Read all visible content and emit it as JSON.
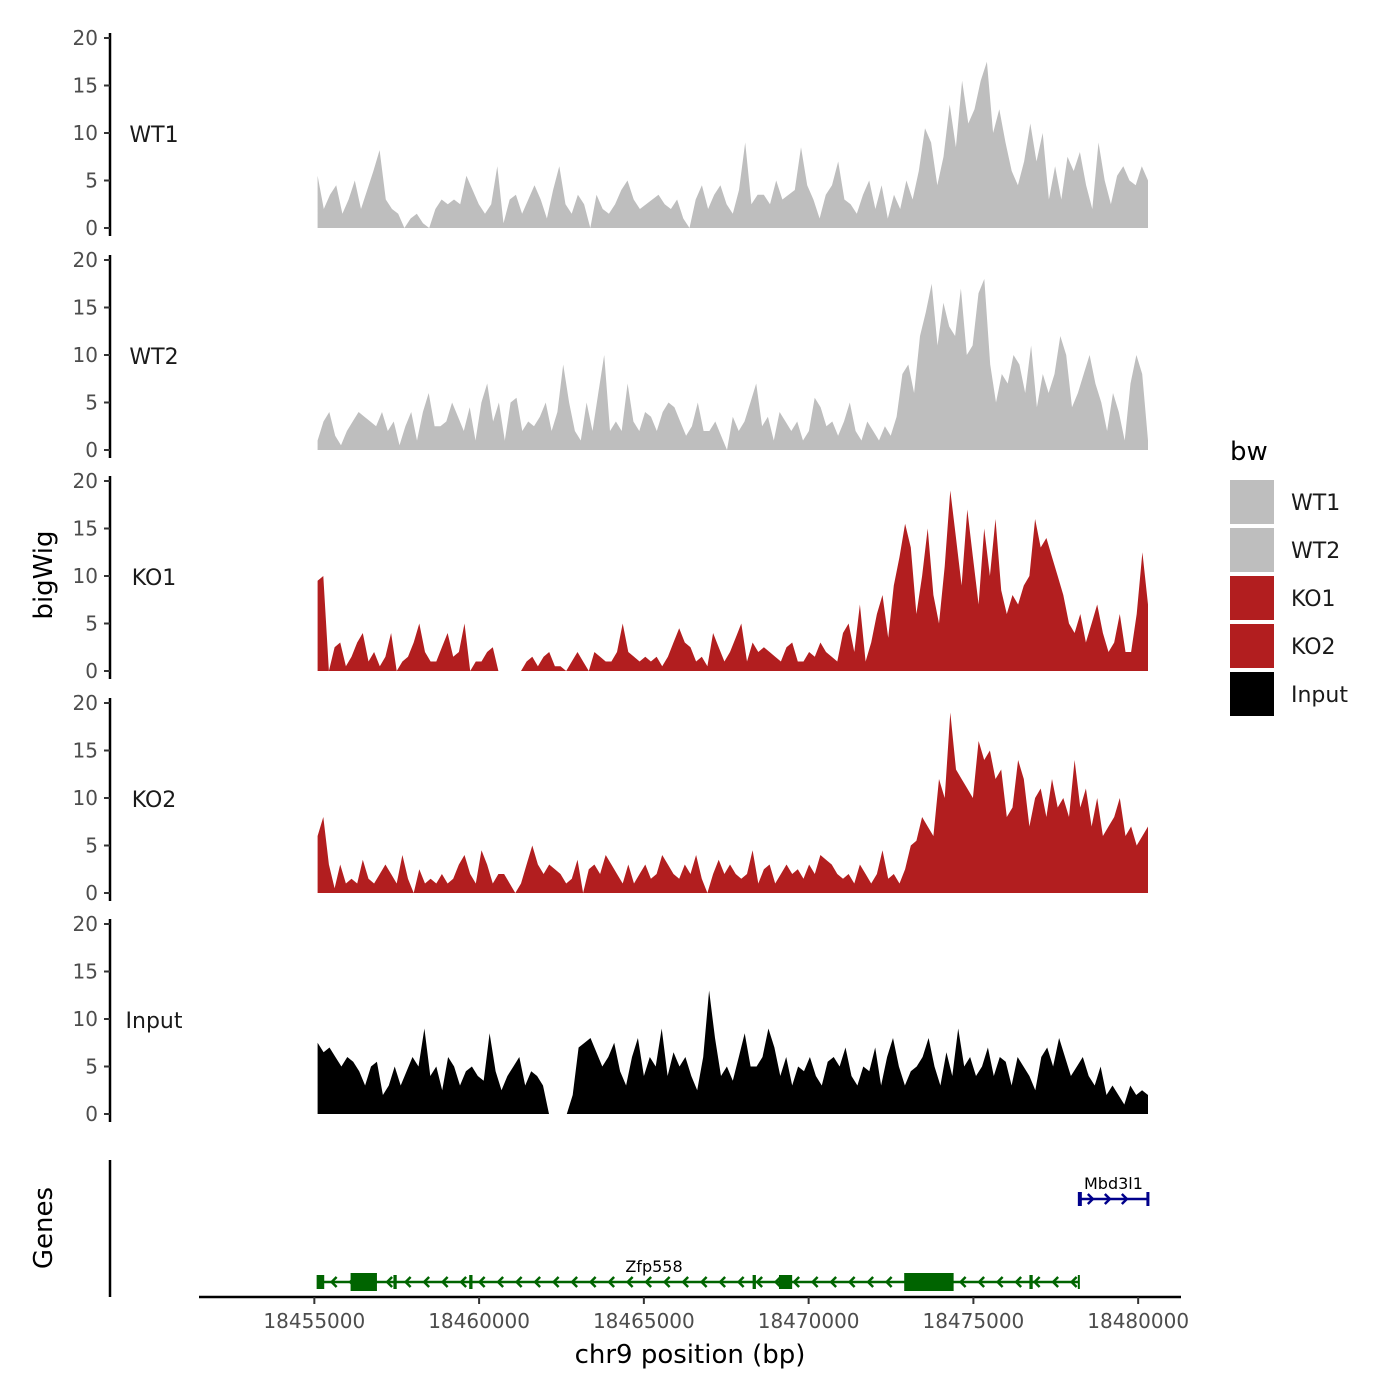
{
  "chart_data": {
    "type": "area",
    "title": "",
    "ylabel": "bigWig",
    "xlabel": "chr9 position (bp)",
    "genes_label": "Genes",
    "xlim": [
      18451500,
      18481300
    ],
    "data_range": [
      18455100,
      18480300
    ],
    "x_ticks": [
      18455000,
      18460000,
      18465000,
      18470000,
      18475000,
      18480000
    ],
    "x_tick_labels": [
      "18455000",
      "18460000",
      "18465000",
      "18470000",
      "18475000",
      "18480000"
    ],
    "ylim": [
      0,
      20
    ],
    "y_ticks": [
      0,
      5,
      10,
      15,
      20
    ],
    "y_tick_labels": [
      "0",
      "5",
      "10",
      "15",
      "20"
    ],
    "legend": {
      "title": "bw",
      "position": "right",
      "entries": [
        {
          "label": "WT1",
          "color": "#bebebe"
        },
        {
          "label": "WT2",
          "color": "#bebebe"
        },
        {
          "label": "KO1",
          "color": "#b21e1f"
        },
        {
          "label": "KO2",
          "color": "#b21e1f"
        },
        {
          "label": "Input",
          "color": "#000000"
        }
      ]
    },
    "series": [
      {
        "name": "WT1",
        "color": "#bebebe",
        "values": [
          5.5,
          2,
          3.5,
          4.5,
          1.5,
          3,
          5,
          2,
          4,
          6,
          8.2,
          3,
          2,
          1.5,
          0,
          1,
          1.5,
          0.5,
          0,
          2,
          3,
          2.5,
          3,
          2.5,
          5.5,
          4,
          2.5,
          1.5,
          2.5,
          6.5,
          0.5,
          3,
          3.5,
          1.5,
          3,
          4.5,
          3,
          1,
          4,
          6.5,
          2.5,
          1.5,
          3.5,
          2.5,
          0,
          3.5,
          2,
          1.5,
          2.5,
          4,
          5,
          3,
          2,
          2.5,
          3,
          3.5,
          2.5,
          2,
          3,
          1,
          0,
          3,
          4.5,
          2,
          3.5,
          4.5,
          2.5,
          1.5,
          4,
          9,
          2.5,
          3.5,
          3.5,
          2.5,
          5,
          3,
          3.5,
          4,
          8.5,
          4.5,
          3,
          1,
          3.5,
          4.5,
          7,
          3,
          2.5,
          1.5,
          3.5,
          5,
          2,
          4.5,
          1,
          3.5,
          2,
          5,
          3,
          6,
          10.5,
          9,
          4.5,
          7.5,
          13,
          8.5,
          15.5,
          11,
          12.5,
          15.5,
          17.5,
          10,
          12.5,
          9,
          6,
          4.5,
          7,
          11,
          7,
          10,
          3,
          6.5,
          3,
          7.5,
          6,
          8,
          4.5,
          2,
          9,
          5,
          2.5,
          5.5,
          6.5,
          5,
          4.5,
          6.5,
          5
        ]
      },
      {
        "name": "WT2",
        "color": "#bebebe",
        "values": [
          1,
          3,
          4,
          1.5,
          0.5,
          2,
          3,
          4,
          3.5,
          3,
          2.5,
          4,
          2,
          3,
          0.5,
          2.5,
          4,
          1,
          4,
          6,
          2.5,
          2.5,
          3,
          5,
          3.5,
          2,
          4.5,
          1,
          5,
          7,
          3,
          5,
          1,
          5,
          5.5,
          2,
          3,
          2.5,
          3.5,
          5,
          2,
          4,
          9,
          5,
          2,
          1,
          5,
          2,
          6,
          10,
          2,
          3,
          2,
          7,
          3,
          2,
          4,
          3.5,
          2,
          4,
          5,
          4.5,
          3,
          1.5,
          2.5,
          5,
          2,
          2,
          3,
          1.5,
          0,
          3.5,
          2,
          3,
          5,
          7,
          2.5,
          3.5,
          1,
          4,
          3,
          2,
          3,
          1,
          2,
          5.5,
          4.5,
          2.5,
          3,
          1.5,
          3,
          5,
          2,
          1,
          3,
          2,
          1,
          2.5,
          1.5,
          3.5,
          8,
          9,
          6,
          12,
          14.5,
          17.5,
          11,
          15.5,
          13,
          12,
          17,
          10,
          11,
          16.5,
          18,
          9,
          5,
          8,
          7,
          10,
          9,
          6,
          11,
          4.5,
          8,
          6,
          8,
          12,
          10,
          4.5,
          6,
          8,
          10,
          7,
          5,
          2,
          6,
          4,
          1,
          7,
          10,
          8,
          1
        ]
      },
      {
        "name": "KO1",
        "color": "#b21e1f",
        "values": [
          9.5,
          10,
          0,
          2.5,
          3,
          0.5,
          1.5,
          3,
          4,
          1,
          2,
          0.5,
          1.5,
          4,
          0,
          1,
          1.5,
          3,
          5,
          2,
          1,
          1,
          2.5,
          4,
          1.5,
          2,
          5,
          0,
          1,
          1,
          2,
          2.5,
          0,
          null,
          null,
          null,
          0,
          1,
          1.5,
          0.5,
          1.5,
          2,
          0.5,
          0.5,
          0,
          1,
          2,
          1,
          0,
          2,
          1.5,
          1,
          1,
          2,
          5,
          2,
          1.5,
          1,
          1.5,
          1,
          1.5,
          0.5,
          1.5,
          3,
          4.5,
          3,
          2.5,
          1,
          1.5,
          0.5,
          4,
          2.5,
          1,
          2,
          3.5,
          5,
          1,
          3,
          2,
          2.5,
          2,
          1.5,
          1,
          2.5,
          3,
          1,
          1,
          2,
          1.5,
          3,
          2,
          1.5,
          1,
          4,
          5,
          2,
          7,
          1,
          3,
          6,
          8,
          3.5,
          9,
          12,
          15.5,
          13,
          6,
          10,
          15,
          8,
          5,
          11,
          19,
          14,
          9,
          17,
          12,
          7,
          15,
          10,
          16,
          8.5,
          6,
          8,
          7,
          9,
          10,
          16,
          13,
          14,
          12,
          10,
          8,
          5,
          4,
          6,
          3,
          5,
          7,
          4,
          2,
          3,
          6,
          2,
          2,
          6,
          12.5,
          7
        ]
      },
      {
        "name": "KO2",
        "color": "#b21e1f",
        "values": [
          6,
          8,
          3,
          0.5,
          3,
          1,
          1.5,
          1,
          3.5,
          1.5,
          1,
          2,
          3,
          2,
          1,
          4,
          1.5,
          0,
          2.5,
          1,
          1.5,
          1,
          2,
          1,
          1.5,
          3,
          4,
          2,
          1,
          4.5,
          3,
          1,
          2,
          2,
          1,
          0,
          1,
          3,
          5,
          3,
          2,
          3,
          2.5,
          2,
          1,
          1.5,
          3.5,
          0,
          2.5,
          3,
          2,
          4,
          3,
          2,
          1,
          3,
          1,
          2,
          3,
          1.5,
          2,
          4,
          3,
          2,
          1.5,
          3,
          2,
          4,
          1.5,
          0,
          2,
          3.5,
          2,
          3,
          2,
          1.5,
          2,
          4.5,
          1,
          2.5,
          3,
          1,
          2,
          3,
          2,
          2.5,
          1.5,
          3,
          2,
          4,
          3.5,
          3,
          2,
          1.5,
          2,
          1,
          3,
          2,
          1,
          2,
          4.5,
          1.5,
          2,
          1,
          2.5,
          5,
          5.5,
          8,
          7,
          6,
          12,
          10,
          19,
          13,
          12,
          11,
          10,
          16,
          14,
          15,
          12,
          13,
          8,
          9,
          14,
          12,
          7,
          10,
          11,
          8,
          12,
          9,
          10,
          8,
          14,
          9,
          11,
          7,
          10,
          6,
          7,
          8,
          10,
          6,
          7,
          5,
          6,
          7
        ]
      },
      {
        "name": "Input",
        "color": "#000000",
        "values": [
          7.5,
          6.5,
          7,
          6,
          5,
          6,
          5.5,
          4.5,
          3,
          5,
          5.5,
          2,
          3,
          5,
          3,
          4.5,
          6,
          5,
          9,
          4,
          5,
          2.5,
          6,
          5,
          3,
          4.5,
          5,
          4,
          3.5,
          8.5,
          4.5,
          2.5,
          4,
          5,
          6,
          3,
          4.5,
          4,
          3,
          0,
          null,
          null,
          0,
          2,
          7,
          7.5,
          8,
          6.5,
          5,
          6,
          7.5,
          4.5,
          3,
          6,
          8,
          4,
          6,
          5,
          9,
          4,
          6.5,
          5,
          6,
          4,
          2.5,
          6,
          13,
          8,
          4,
          5,
          3.5,
          6,
          8.5,
          5,
          5,
          6,
          9,
          7,
          4,
          6,
          3,
          5,
          4.5,
          6,
          4,
          3,
          5.5,
          6,
          5,
          7,
          4,
          3,
          5,
          4.5,
          7,
          3,
          6,
          8,
          5,
          3,
          4.5,
          5,
          6,
          8,
          5,
          3,
          6.5,
          4,
          9,
          5,
          6,
          4,
          5,
          7,
          4,
          6,
          5.5,
          3,
          6,
          5,
          4,
          2.5,
          6,
          7,
          5,
          8,
          6,
          4,
          5,
          6,
          4,
          3,
          5,
          2,
          3,
          2,
          1,
          3,
          2,
          2.5,
          2
        ]
      }
    ],
    "genes": [
      {
        "name": "Zfp558",
        "strand": "-",
        "color": "#006400",
        "start": 18455100,
        "end": 18478200,
        "exons": [
          [
            18455100,
            18455300
          ],
          [
            18456100,
            18456900
          ],
          [
            18457400,
            18457500
          ],
          [
            18459700,
            18459800
          ],
          [
            18468300,
            18468400
          ],
          [
            18469100,
            18469500
          ],
          [
            18472900,
            18474400
          ],
          [
            18476700,
            18476800
          ]
        ]
      },
      {
        "name": "Mbd3l1",
        "strand": "+",
        "color": "#00008b",
        "start": 18478200,
        "end": 18480300,
        "exons": [
          [
            18478200,
            18478250
          ],
          [
            18480250,
            18480300
          ]
        ]
      }
    ]
  }
}
